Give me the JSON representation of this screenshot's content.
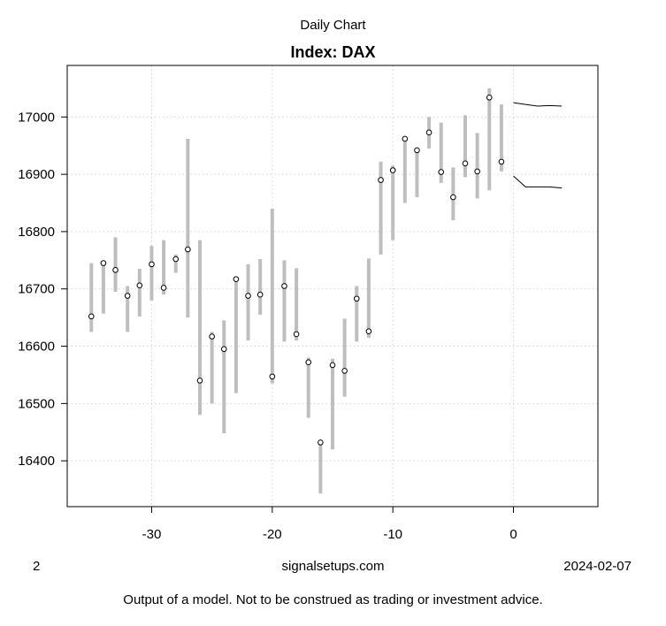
{
  "header": {
    "supertitle": "Daily Chart",
    "title": "Index: DAX"
  },
  "footer": {
    "left": "2",
    "center": "signalsetups.com",
    "right": "2024-02-07",
    "disclaimer": "Output of a model. Not to be construed as trading or investment advice."
  },
  "chart_data": {
    "type": "range-dot",
    "title": "Index: DAX",
    "xlim": [
      -37,
      7
    ],
    "ylim": [
      16320,
      17090
    ],
    "x_ticks": [
      -30,
      -20,
      -10,
      0
    ],
    "y_ticks": [
      16400,
      16500,
      16600,
      16700,
      16800,
      16900,
      17000
    ],
    "grid": true,
    "colors": {
      "range_bar": "#bebebe",
      "grid": "#d3d3d3",
      "point_stroke": "#000000",
      "band": "#000000"
    },
    "bars": [
      {
        "x": -35,
        "low": 16625,
        "high": 16745,
        "close": 16652
      },
      {
        "x": -34,
        "low": 16657,
        "high": 16748,
        "close": 16745
      },
      {
        "x": -33,
        "low": 16695,
        "high": 16790,
        "close": 16733
      },
      {
        "x": -32,
        "low": 16625,
        "high": 16705,
        "close": 16688
      },
      {
        "x": -31,
        "low": 16652,
        "high": 16735,
        "close": 16706
      },
      {
        "x": -30,
        "low": 16680,
        "high": 16775,
        "close": 16743
      },
      {
        "x": -29,
        "low": 16690,
        "high": 16785,
        "close": 16702
      },
      {
        "x": -28,
        "low": 16728,
        "high": 16760,
        "close": 16752
      },
      {
        "x": -27,
        "low": 16650,
        "high": 16962,
        "close": 16769
      },
      {
        "x": -26,
        "low": 16480,
        "high": 16785,
        "close": 16540
      },
      {
        "x": -25,
        "low": 16500,
        "high": 16625,
        "close": 16617
      },
      {
        "x": -24,
        "low": 16448,
        "high": 16645,
        "close": 16595
      },
      {
        "x": -23,
        "low": 16518,
        "high": 16718,
        "close": 16717
      },
      {
        "x": -22,
        "low": 16610,
        "high": 16743,
        "close": 16688
      },
      {
        "x": -21,
        "low": 16655,
        "high": 16752,
        "close": 16690
      },
      {
        "x": -20,
        "low": 16535,
        "high": 16840,
        "close": 16547
      },
      {
        "x": -19,
        "low": 16608,
        "high": 16750,
        "close": 16705
      },
      {
        "x": -18,
        "low": 16610,
        "high": 16736,
        "close": 16621
      },
      {
        "x": -17,
        "low": 16475,
        "high": 16580,
        "close": 16572
      },
      {
        "x": -16,
        "low": 16343,
        "high": 16435,
        "close": 16432
      },
      {
        "x": -15,
        "low": 16420,
        "high": 16578,
        "close": 16567
      },
      {
        "x": -14,
        "low": 16512,
        "high": 16648,
        "close": 16557
      },
      {
        "x": -13,
        "low": 16608,
        "high": 16705,
        "close": 16683
      },
      {
        "x": -12,
        "low": 16615,
        "high": 16753,
        "close": 16626
      },
      {
        "x": -11,
        "low": 16760,
        "high": 16922,
        "close": 16890
      },
      {
        "x": -10,
        "low": 16785,
        "high": 16915,
        "close": 16907
      },
      {
        "x": -9,
        "low": 16850,
        "high": 16965,
        "close": 16962
      },
      {
        "x": -8,
        "low": 16860,
        "high": 16945,
        "close": 16942
      },
      {
        "x": -7,
        "low": 16945,
        "high": 17000,
        "close": 16973
      },
      {
        "x": -6,
        "low": 16885,
        "high": 16990,
        "close": 16904
      },
      {
        "x": -5,
        "low": 16820,
        "high": 16912,
        "close": 16860
      },
      {
        "x": -4,
        "low": 16895,
        "high": 17003,
        "close": 16919
      },
      {
        "x": -3,
        "low": 16858,
        "high": 16972,
        "close": 16905
      },
      {
        "x": -2,
        "low": 16872,
        "high": 17050,
        "close": 17034
      },
      {
        "x": -1,
        "low": 16905,
        "high": 17022,
        "close": 16922
      }
    ],
    "forecast_band": {
      "upper": [
        [
          0,
          17025
        ],
        [
          1,
          17022
        ],
        [
          2,
          17019
        ],
        [
          3,
          17020
        ],
        [
          4,
          17019
        ]
      ],
      "lower": [
        [
          0,
          16897
        ],
        [
          1,
          16878
        ],
        [
          2,
          16878
        ],
        [
          3,
          16878
        ],
        [
          4,
          16876
        ]
      ]
    }
  }
}
